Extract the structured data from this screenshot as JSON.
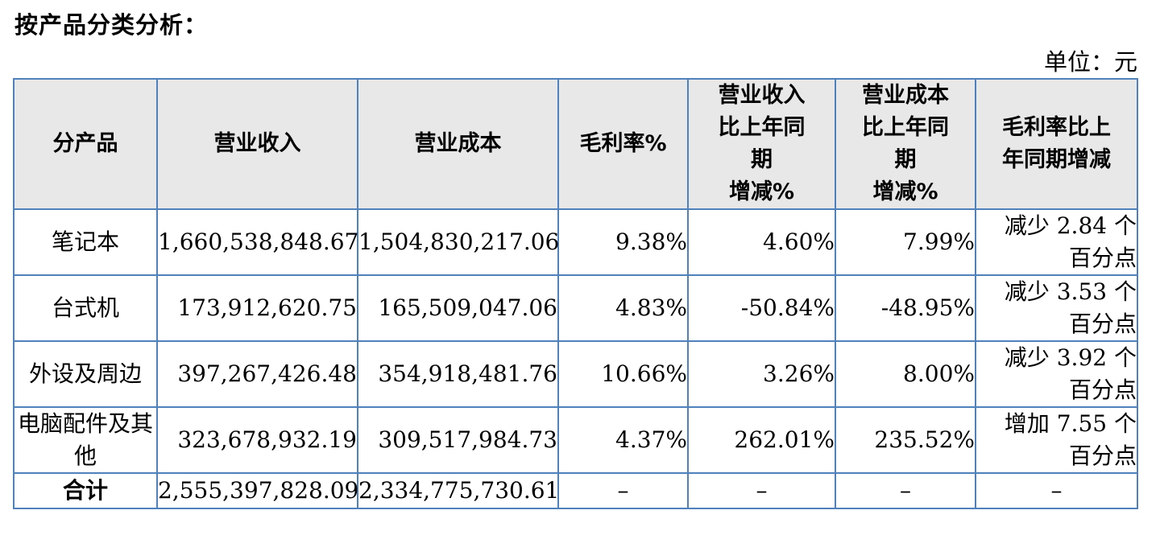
{
  "title": "按产品分类分析：",
  "unit": "单位：元",
  "headers": {
    "product": "分产品",
    "revenue": "营业收入",
    "cost": "营业成本",
    "margin": "毛利率%",
    "revenue_change": [
      "营业收入",
      "比上年同",
      "期",
      "增减%"
    ],
    "cost_change": [
      "营业成本",
      "比上年同",
      "期",
      "增减%"
    ],
    "margin_change": [
      "毛利率比上",
      "年同期增减"
    ]
  },
  "rows": [
    {
      "product": "笔记本",
      "revenue": "1,660,538,848.67",
      "cost": "1,504,830,217.06",
      "margin": "9.38%",
      "revenue_change": "4.60%",
      "cost_change": "7.99%",
      "margin_change_line1": "减少 2.84 个",
      "margin_change_line2": "百分点"
    },
    {
      "product": "台式机",
      "revenue": "173,912,620.75",
      "cost": "165,509,047.06",
      "margin": "4.83%",
      "revenue_change": "-50.84%",
      "cost_change": "-48.95%",
      "margin_change_line1": "减少 3.53 个",
      "margin_change_line2": "百分点"
    },
    {
      "product": "外设及周边",
      "revenue": "397,267,426.48",
      "cost": "354,918,481.76",
      "margin": "10.66%",
      "revenue_change": "3.26%",
      "cost_change": "8.00%",
      "margin_change_line1": "减少 3.92 个",
      "margin_change_line2": "百分点"
    },
    {
      "product": "电脑配件及其他",
      "revenue": "323,678,932.19",
      "cost": "309,517,984.73",
      "margin": "4.37%",
      "revenue_change": "262.01%",
      "cost_change": "235.52%",
      "margin_change_line1": "增加 7.55 个",
      "margin_change_line2": "百分点"
    }
  ],
  "total": {
    "label": "合计",
    "revenue": "2,555,397,828.09",
    "cost": "2,334,775,730.61",
    "margin": "–",
    "revenue_change": "–",
    "cost_change": "–",
    "margin_change": "–"
  }
}
